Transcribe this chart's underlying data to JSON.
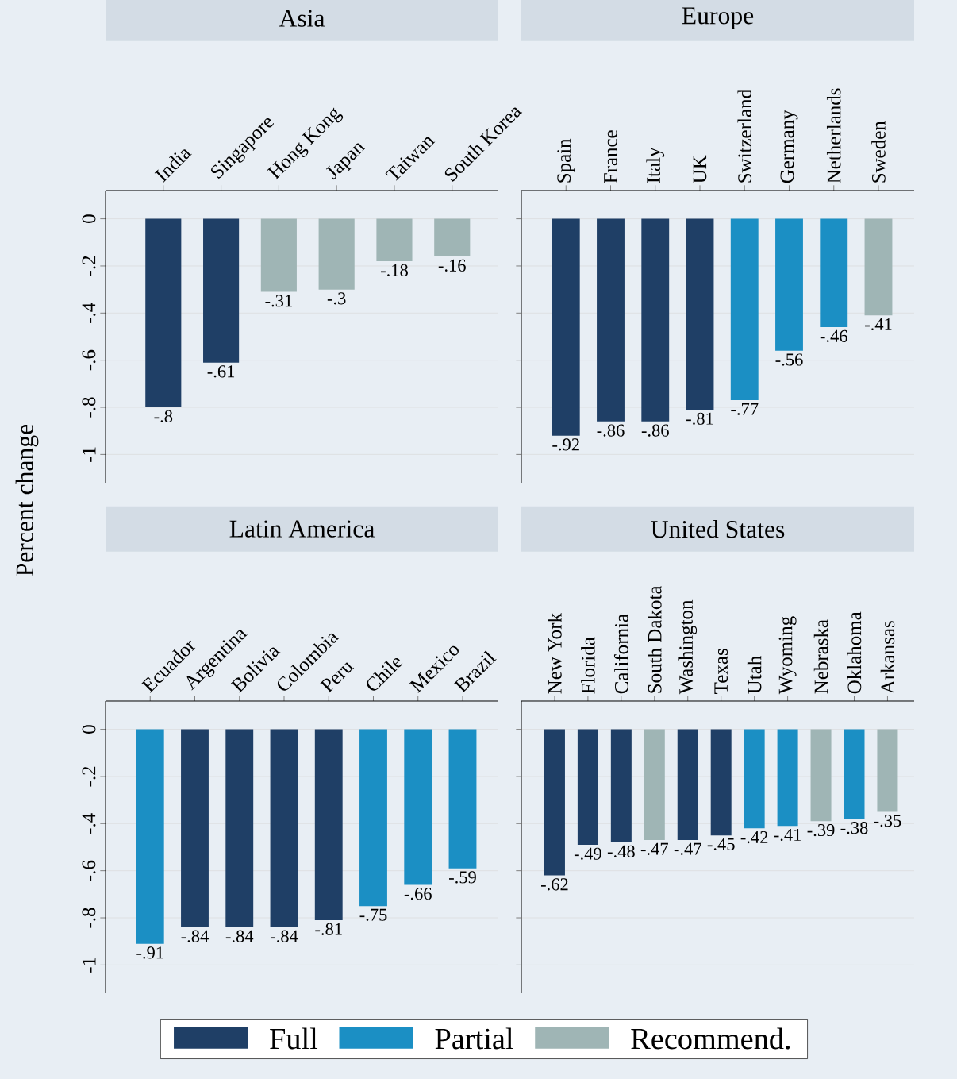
{
  "chart_data": [
    {
      "type": "bar",
      "title": "Asia",
      "ylabel": "Percent change",
      "categories": [
        "India",
        "Singapore",
        "Hong Kong",
        "Japan",
        "Taiwan",
        "South Korea"
      ],
      "ylim": [
        -1.12,
        0.12
      ],
      "yticks": [
        {
          "value": 0,
          "label": "0"
        },
        {
          "value": -0.2,
          "label": "-.2"
        },
        {
          "value": -0.4,
          "label": "-.4"
        },
        {
          "value": -0.6,
          "label": "-.6"
        },
        {
          "value": -0.8,
          "label": "-.8"
        },
        {
          "value": -1,
          "label": "-1"
        }
      ],
      "grid": "y",
      "stacked": true,
      "series": [
        {
          "color": "#1f3f66",
          "values": [
            -0.8,
            -0.61,
            null,
            null,
            null,
            null
          ],
          "value_labels": [
            "-.8",
            "-.61",
            null,
            null,
            null,
            null
          ]
        },
        {
          "color": "#9fb5b5",
          "values": [
            null,
            null,
            -0.31,
            -0.3,
            -0.18,
            -0.16
          ],
          "value_labels": [
            null,
            null,
            "-.31",
            "-.3",
            "-.18",
            "-.16"
          ]
        }
      ]
    },
    {
      "type": "bar",
      "title": "Europe",
      "categories": [
        "Spain",
        "France",
        "Italy",
        "UK",
        "Switzerland",
        "Germany",
        "Netherlands",
        "Sweden"
      ],
      "ylim": [
        -1.12,
        0.12
      ],
      "yticks": [
        {
          "value": 0,
          "label": null
        },
        {
          "value": -0.2,
          "label": null
        },
        {
          "value": -0.4,
          "label": null
        },
        {
          "value": -0.6,
          "label": null
        },
        {
          "value": -0.8,
          "label": null
        },
        {
          "value": -1,
          "label": null
        }
      ],
      "grid": "y",
      "tick_labels": "x",
      "stacked": true,
      "series": [
        {
          "color": "#1f3f66",
          "values": [
            -0.92,
            -0.86,
            -0.86,
            -0.81,
            null,
            null,
            null,
            null
          ],
          "value_labels": [
            "-.92",
            "-.86",
            "-.86",
            "-.81",
            null,
            null,
            null,
            null
          ]
        },
        {
          "color": "#1b8fc4",
          "values": [
            null,
            null,
            null,
            null,
            -0.77,
            -0.56,
            -0.46,
            null
          ],
          "value_labels": [
            null,
            null,
            null,
            null,
            "-.77",
            "-.56",
            "-.46",
            null
          ]
        },
        {
          "color": "#9fb5b5",
          "values": [
            null,
            null,
            null,
            null,
            null,
            null,
            null,
            -0.41
          ],
          "value_labels": [
            null,
            null,
            null,
            null,
            null,
            null,
            null,
            "-.41"
          ]
        }
      ]
    },
    {
      "type": "bar",
      "title": "Latin America",
      "categories": [
        "Ecuador",
        "Argentina",
        "Bolivia",
        "Colombia",
        "Peru",
        "Chile",
        "Mexico",
        "Brazil"
      ],
      "ylim": [
        -1.12,
        0.12
      ],
      "yticks": [
        {
          "value": 0,
          "label": "0"
        },
        {
          "value": -0.2,
          "label": "-.2"
        },
        {
          "value": -0.4,
          "label": "-.4"
        },
        {
          "value": -0.6,
          "label": "-.6"
        },
        {
          "value": -0.8,
          "label": "-.8"
        },
        {
          "value": -1,
          "label": "-1"
        }
      ],
      "grid": "y",
      "stacked": true,
      "series": [
        {
          "color": "#1f3f66",
          "values": [
            null,
            -0.84,
            -0.84,
            -0.84,
            -0.81,
            null,
            null,
            null
          ],
          "value_labels": [
            null,
            "-.84",
            "-.84",
            "-.84",
            "-.81",
            null,
            null,
            null
          ]
        },
        {
          "color": "#1b8fc4",
          "values": [
            -0.91,
            null,
            null,
            null,
            null,
            -0.75,
            -0.66,
            -0.59
          ],
          "value_labels": [
            "-.91",
            null,
            null,
            null,
            null,
            "-.75",
            "-.66",
            "-.59"
          ]
        }
      ]
    },
    {
      "type": "bar",
      "title": "United States",
      "categories": [
        "New York",
        "Florida",
        "California",
        "South Dakota",
        "Washington",
        "Texas",
        "Utah",
        "Wyoming",
        "Nebraska",
        "Oklahoma",
        "Arkansas"
      ],
      "ylim": [
        -1.12,
        0.12
      ],
      "yticks": [
        {
          "value": 0,
          "label": null
        },
        {
          "value": -0.2,
          "label": null
        },
        {
          "value": -0.4,
          "label": null
        },
        {
          "value": -0.6,
          "label": null
        },
        {
          "value": -0.8,
          "label": null
        },
        {
          "value": -1,
          "label": null
        }
      ],
      "grid": "y",
      "tick_labels": "x",
      "legend": "bottom",
      "stacked": true,
      "series": [
        {
          "name": "Full",
          "color": "#1f3f66",
          "values": [
            -0.62,
            -0.49,
            -0.48,
            null,
            -0.47,
            -0.45,
            null,
            null,
            null,
            null,
            null
          ],
          "value_labels": [
            "-.62",
            "-.49",
            "-.48",
            null,
            "-.47",
            "-.45",
            null,
            null,
            null,
            null,
            null
          ]
        },
        {
          "name": "Partial",
          "color": "#1b8fc4",
          "values": [
            null,
            null,
            null,
            null,
            null,
            null,
            -0.42,
            -0.41,
            null,
            -0.38,
            null
          ],
          "value_labels": [
            null,
            null,
            null,
            null,
            null,
            null,
            "-.42",
            "-.41",
            null,
            "-.38",
            null
          ]
        },
        {
          "name": "Recommend.",
          "color": "#9fb5b5",
          "values": [
            null,
            null,
            null,
            -0.47,
            null,
            null,
            null,
            null,
            -0.39,
            null,
            -0.35
          ],
          "value_labels": [
            null,
            null,
            null,
            "-.47",
            null,
            null,
            null,
            null,
            "-.39",
            null,
            "-.35"
          ]
        }
      ]
    }
  ]
}
